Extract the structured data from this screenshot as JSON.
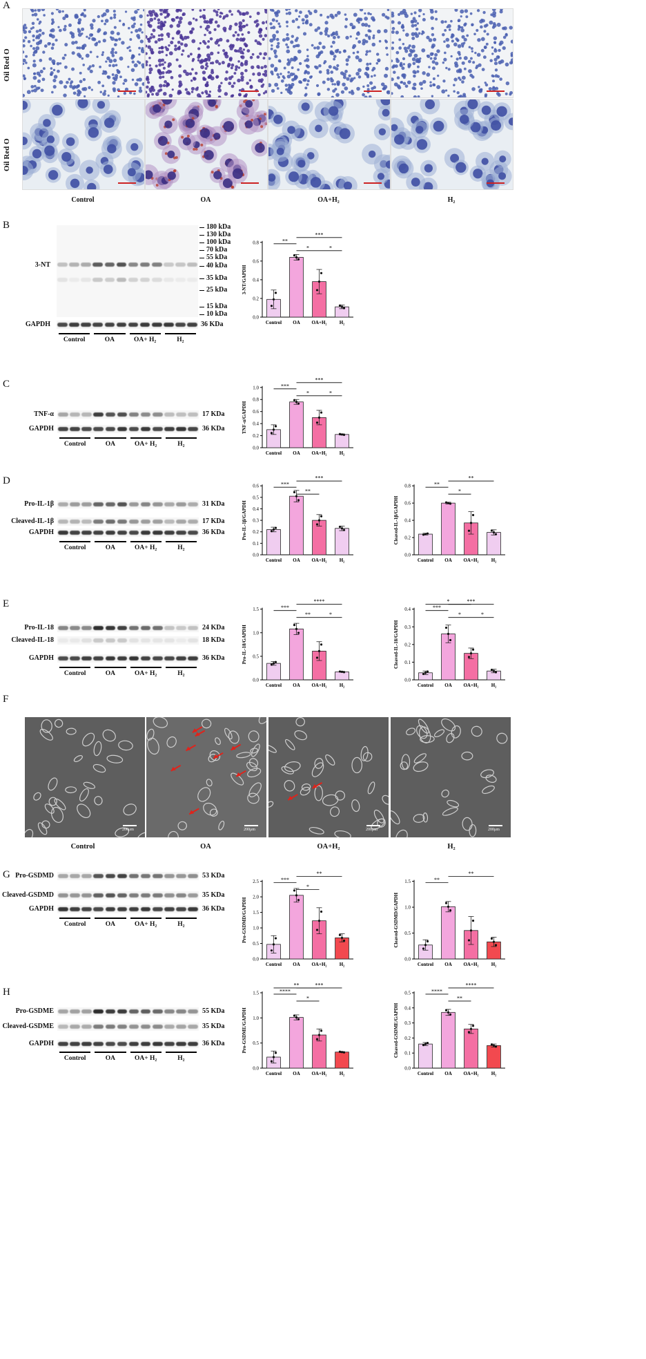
{
  "panels": {
    "A": "A",
    "B": "B",
    "C": "C",
    "D": "D",
    "E": "E",
    "F": "F",
    "G": "G",
    "H": "H"
  },
  "groups": [
    "Control",
    "OA",
    "OA+H2",
    "H2"
  ],
  "panel_a": {
    "row_label": "Oil Red O",
    "captions": [
      "Control",
      "OA",
      "OA+H₂",
      "H₂"
    ]
  },
  "panel_b": {
    "row_label": "3-NT",
    "gapdh": "GAPDH",
    "gapdh_kda": "36 KDa",
    "markers": [
      "180 kDa",
      "130 kDa",
      "100 kDa",
      "70 kDa",
      "55 kDa",
      "40 kDa",
      "35 kDa",
      "25 kDa",
      "15 kDa",
      "10 kDa"
    ],
    "groups": [
      "Control",
      "OA",
      "OA+ H₂",
      "H₂"
    ]
  },
  "panel_c": {
    "rows": [
      "TNF-α",
      "GAPDH"
    ],
    "kda": [
      "17 KDa",
      "36 KDa"
    ],
    "groups": [
      "Control",
      "OA",
      "OA+ H₂",
      "H₂"
    ]
  },
  "panel_d": {
    "rows": [
      "Pro-IL-1β",
      "Cleaved-IL-1β",
      "GAPDH"
    ],
    "kda": [
      "31 KDa",
      "17 KDa",
      "36 KDa"
    ],
    "groups": [
      "Control",
      "OA",
      "OA+ H₂",
      "H₂"
    ]
  },
  "panel_e": {
    "rows": [
      "Pro-IL-18",
      "Cleaved-IL-18",
      "GAPDH"
    ],
    "kda": [
      "24 KDa",
      "18 KDa",
      "36 KDa"
    ],
    "groups": [
      "Control",
      "OA",
      "OA+ H₂",
      "H₂"
    ]
  },
  "panel_f": {
    "captions": [
      "Control",
      "OA",
      "OA+H₂",
      "H₂"
    ],
    "scale": "200μm"
  },
  "panel_g": {
    "rows": [
      "Pro-GSDMD",
      "Cleaved-GSDMD",
      "GAPDH"
    ],
    "kda": [
      "53 KDa",
      "35 KDa",
      "36 KDa"
    ],
    "groups": [
      "Control",
      "OA",
      "OA+ H₂",
      "H₂"
    ]
  },
  "panel_h": {
    "rows": [
      "Pro-GSDME",
      "Cleaved-GSDME",
      "GAPDH"
    ],
    "kda": [
      "55 KDa",
      "35 KDa",
      "36 KDa"
    ],
    "groups": [
      "Control",
      "OA",
      "OA+ H₂",
      "H₂"
    ]
  },
  "chart_data": [
    {
      "id": "3nt",
      "type": "bar",
      "categories": [
        "Control",
        "OA",
        "OA+H₂",
        "H₂"
      ],
      "values": [
        0.19,
        0.64,
        0.38,
        0.11
      ],
      "errors": [
        0.1,
        0.03,
        0.13,
        0.02
      ],
      "ylabel": "3-NT/GAPDH",
      "ylim": [
        0,
        0.8
      ],
      "yticks": [
        0,
        0.2,
        0.4,
        0.6,
        0.8
      ],
      "colors": [
        "#f0cdf0",
        "#f3a6dd",
        "#f46fa3",
        "#f0cdf0"
      ],
      "sig": [
        {
          "a": 0,
          "b": 1,
          "t": "**"
        },
        {
          "a": 1,
          "b": 2,
          "t": "*"
        },
        {
          "a": 2,
          "b": 3,
          "t": "*"
        },
        {
          "a": 1,
          "b": 3,
          "t": "***"
        }
      ]
    },
    {
      "id": "tnf",
      "type": "bar",
      "categories": [
        "Control",
        "OA",
        "OA+H₂",
        "H₂"
      ],
      "values": [
        0.3,
        0.76,
        0.5,
        0.22
      ],
      "errors": [
        0.08,
        0.04,
        0.12,
        0.01
      ],
      "ylabel": "TNF-α/GAPDH",
      "ylim": [
        0,
        1.0
      ],
      "yticks": [
        0,
        0.2,
        0.4,
        0.6,
        0.8,
        1.0
      ],
      "colors": [
        "#f0cdf0",
        "#f3a6dd",
        "#f46fa3",
        "#f0cdf0"
      ],
      "sig": [
        {
          "a": 0,
          "b": 1,
          "t": "***"
        },
        {
          "a": 1,
          "b": 2,
          "t": "*"
        },
        {
          "a": 2,
          "b": 3,
          "t": "*"
        },
        {
          "a": 1,
          "b": 3,
          "t": "***"
        }
      ]
    },
    {
      "id": "proil1b",
      "type": "bar",
      "categories": [
        "Control",
        "OA",
        "OA+H₂",
        "H₂"
      ],
      "values": [
        0.22,
        0.51,
        0.3,
        0.23
      ],
      "errors": [
        0.02,
        0.05,
        0.05,
        0.02
      ],
      "ylabel": "Pro-IL-1β/GAPDH",
      "ylim": [
        0,
        0.6
      ],
      "yticks": [
        0,
        0.1,
        0.2,
        0.3,
        0.4,
        0.5,
        0.6
      ],
      "colors": [
        "#f0cdf0",
        "#f3a6dd",
        "#f46fa3",
        "#f0cdf0"
      ],
      "sig": [
        {
          "a": 0,
          "b": 1,
          "t": "***"
        },
        {
          "a": 1,
          "b": 2,
          "t": "**"
        },
        {
          "a": 1,
          "b": 3,
          "t": "***"
        }
      ]
    },
    {
      "id": "clil1b",
      "type": "bar",
      "categories": [
        "Control",
        "OA",
        "OA+H₂",
        "H₂"
      ],
      "values": [
        0.24,
        0.6,
        0.37,
        0.26
      ],
      "errors": [
        0.01,
        0.01,
        0.13,
        0.03
      ],
      "ylabel": "Cleaved-IL-1β/GAPDH",
      "ylim": [
        0,
        0.8
      ],
      "yticks": [
        0,
        0.2,
        0.4,
        0.6,
        0.8
      ],
      "colors": [
        "#f0cdf0",
        "#f3a6dd",
        "#f46fa3",
        "#f0cdf0"
      ],
      "sig": [
        {
          "a": 0,
          "b": 1,
          "t": "**"
        },
        {
          "a": 1,
          "b": 2,
          "t": "*"
        },
        {
          "a": 1,
          "b": 3,
          "t": "**"
        }
      ]
    },
    {
      "id": "proil18",
      "type": "bar",
      "categories": [
        "Control",
        "OA",
        "OA+H₂",
        "H₂"
      ],
      "values": [
        0.35,
        1.08,
        0.61,
        0.17
      ],
      "errors": [
        0.04,
        0.12,
        0.2,
        0.01
      ],
      "ylabel": "Pro-IL-18/GAPDH",
      "ylim": [
        0,
        1.5
      ],
      "yticks": [
        0,
        0.5,
        1.0,
        1.5
      ],
      "colors": [
        "#f0cdf0",
        "#f3a6dd",
        "#f46fa3",
        "#f0cdf0"
      ],
      "sig": [
        {
          "a": 0,
          "b": 1,
          "t": "***"
        },
        {
          "a": 1,
          "b": 2,
          "t": "**"
        },
        {
          "a": 2,
          "b": 3,
          "t": "*"
        },
        {
          "a": 1,
          "b": 3,
          "t": "****"
        }
      ]
    },
    {
      "id": "clil18",
      "type": "bar",
      "categories": [
        "Control",
        "OA",
        "OA+H₂",
        "H₂"
      ],
      "values": [
        0.04,
        0.26,
        0.15,
        0.05
      ],
      "errors": [
        0.01,
        0.05,
        0.03,
        0.01
      ],
      "ylabel": "Cleaved-IL-18/GAPDH",
      "ylim": [
        0,
        0.4
      ],
      "yticks": [
        0,
        0.1,
        0.2,
        0.3,
        0.4
      ],
      "colors": [
        "#f0cdf0",
        "#f3a6dd",
        "#f46fa3",
        "#f0cdf0"
      ],
      "sig": [
        {
          "a": 0,
          "b": 1,
          "t": "***"
        },
        {
          "a": 1,
          "b": 2,
          "t": "*"
        },
        {
          "a": 2,
          "b": 3,
          "t": "*"
        },
        {
          "a": 0,
          "b": 2,
          "t": "*"
        },
        {
          "a": 1,
          "b": 3,
          "t": "***"
        }
      ]
    },
    {
      "id": "progsdmd",
      "type": "bar",
      "categories": [
        "Control",
        "OA",
        "OA+H₂",
        "H₂"
      ],
      "values": [
        0.47,
        2.05,
        1.23,
        0.68
      ],
      "errors": [
        0.28,
        0.22,
        0.42,
        0.13
      ],
      "ylabel": "Pro-GSDMD/GAPDH",
      "ylim": [
        0,
        2.5
      ],
      "yticks": [
        0,
        0.5,
        1.0,
        1.5,
        2.0,
        2.5
      ],
      "colors": [
        "#f0cdf0",
        "#f3a6dd",
        "#f46fa3",
        "#f2494f"
      ],
      "sig": [
        {
          "a": 0,
          "b": 1,
          "t": "***"
        },
        {
          "a": 1,
          "b": 2,
          "t": "*"
        },
        {
          "a": 1,
          "b": 3,
          "t": "**"
        }
      ]
    },
    {
      "id": "clgsdmd",
      "type": "bar",
      "categories": [
        "Control",
        "OA",
        "OA+H₂",
        "H₂"
      ],
      "values": [
        0.27,
        1.01,
        0.55,
        0.33
      ],
      "errors": [
        0.1,
        0.1,
        0.27,
        0.09
      ],
      "ylabel": "Cleaved-GSDMD/GAPDH",
      "ylim": [
        0,
        1.5
      ],
      "yticks": [
        0,
        0.5,
        1.0,
        1.5
      ],
      "colors": [
        "#f0cdf0",
        "#f3a6dd",
        "#f46fa3",
        "#f2494f"
      ],
      "sig": [
        {
          "a": 0,
          "b": 1,
          "t": "**"
        },
        {
          "a": 1,
          "b": 3,
          "t": "**"
        }
      ]
    },
    {
      "id": "progsdme",
      "type": "bar",
      "categories": [
        "Control",
        "OA",
        "OA+H₂",
        "H₂"
      ],
      "values": [
        0.22,
        1.01,
        0.66,
        0.32
      ],
      "errors": [
        0.12,
        0.05,
        0.12,
        0.01
      ],
      "ylabel": "Pro-GSDME/GAPDH",
      "ylim": [
        0,
        1.5
      ],
      "yticks": [
        0,
        0.5,
        1.0,
        1.5
      ],
      "colors": [
        "#f0cdf0",
        "#f3a6dd",
        "#f46fa3",
        "#f2494f"
      ],
      "sig": [
        {
          "a": 0,
          "b": 1,
          "t": "****"
        },
        {
          "a": 1,
          "b": 2,
          "t": "*"
        },
        {
          "a": 0,
          "b": 2,
          "t": "**"
        },
        {
          "a": 1,
          "b": 3,
          "t": "***"
        }
      ]
    },
    {
      "id": "clgsdme",
      "type": "bar",
      "categories": [
        "Control",
        "OA",
        "OA+H₂",
        "H₂"
      ],
      "values": [
        0.16,
        0.37,
        0.26,
        0.15
      ],
      "errors": [
        0.01,
        0.02,
        0.03,
        0.01
      ],
      "ylabel": "Cleaved-GSDME/GAPDH",
      "ylim": [
        0,
        0.5
      ],
      "yticks": [
        0,
        0.1,
        0.2,
        0.3,
        0.4,
        0.5
      ],
      "colors": [
        "#f0cdf0",
        "#f3a6dd",
        "#f46fa3",
        "#f2494f"
      ],
      "sig": [
        {
          "a": 0,
          "b": 1,
          "t": "****"
        },
        {
          "a": 1,
          "b": 2,
          "t": "**"
        },
        {
          "a": 1,
          "b": 3,
          "t": "****"
        }
      ]
    }
  ]
}
